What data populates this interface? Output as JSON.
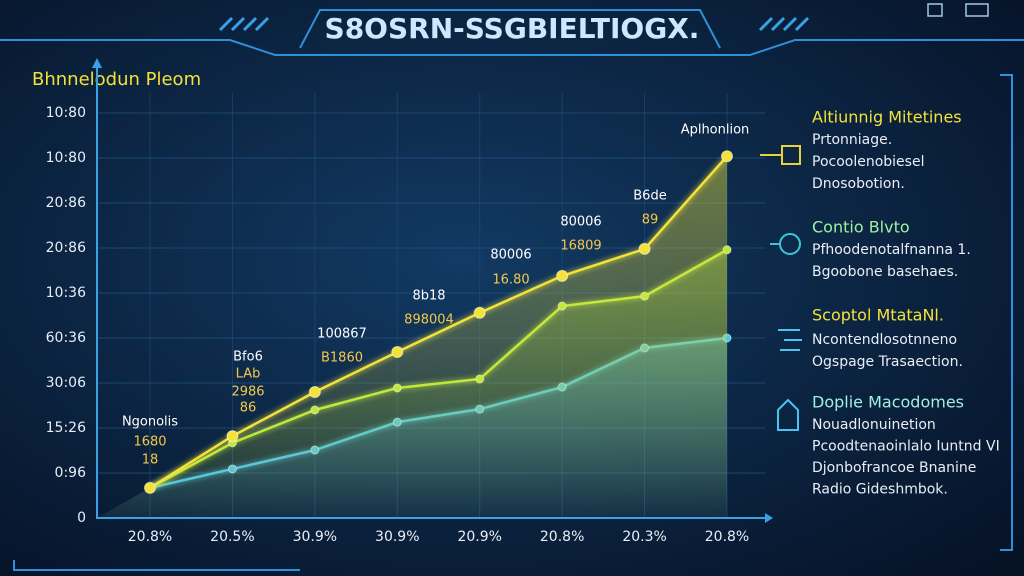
{
  "chart_data": {
    "type": "line",
    "title": "S8OSRN-SSGBIELTIOGX.",
    "y_label": "Bhnnelodun Pleom",
    "categories": [
      "20.8%",
      "20.5%",
      "30.9%",
      "30.9%",
      "20.9%",
      "20.8%",
      "20.3%",
      "20.8%"
    ],
    "ylim": [
      0,
      9
    ],
    "yticks": [
      0,
      {
        "value": 1,
        "label": "0:96"
      },
      {
        "value": 2,
        "label": "15:26"
      },
      {
        "value": 3,
        "label": "30:06"
      },
      {
        "value": 4,
        "label": "60:36"
      },
      {
        "value": 5,
        "label": "10:36"
      },
      {
        "value": 6,
        "label": "20:86"
      },
      {
        "value": 7,
        "label": "20:86"
      },
      {
        "value": 8,
        "label": "10:80"
      },
      {
        "value": 9,
        "label": "10:80"
      }
    ],
    "grid": true,
    "series": [
      {
        "name": "Altiunnig Mitetines",
        "color": "#f2e23a",
        "values": [
          0.67,
          1.82,
          2.8,
          3.69,
          4.56,
          5.38,
          5.98,
          8.04
        ]
      },
      {
        "name": "Contio Blvto",
        "color": "#b9ea3e",
        "values": [
          0.67,
          1.67,
          2.4,
          2.89,
          3.09,
          4.71,
          4.93,
          5.96
        ]
      },
      {
        "name": "Scoptol MtataNl.",
        "color": "#49c3f0",
        "values": [
          0.67,
          1.09,
          1.51,
          2.13,
          2.42,
          2.91,
          3.78,
          4.0
        ]
      }
    ],
    "legend_details": [
      [
        "Prtonniage.",
        "Pocoolenobiesel",
        "Dnosobotion."
      ],
      [
        "Pfhoodenotalfnanna 1.",
        "Bgoobone basehaes."
      ],
      [
        "Ncontendlosotnneno",
        "Ogspage Trasaection."
      ]
    ],
    "extra_note": {
      "title": "Doplie Macodomes",
      "lines": [
        "Nouadlonuinetion",
        "Pcoodtenaoinlalo Iuntnd VI",
        "Djonbofrancoe Bnanine",
        "Radio Gideshmbok."
      ]
    },
    "annotations": [
      [
        "Ngonolis",
        "1680",
        "18"
      ],
      [
        "Bfo6",
        "LAb",
        "2986",
        "86"
      ],
      [
        "100867",
        "B1860"
      ],
      [
        "8b18",
        "898004"
      ],
      [
        "80006",
        "16.80"
      ],
      [
        "80006",
        "16809"
      ],
      [
        "B6de",
        "89"
      ],
      [
        "Aplhonlion"
      ]
    ]
  }
}
